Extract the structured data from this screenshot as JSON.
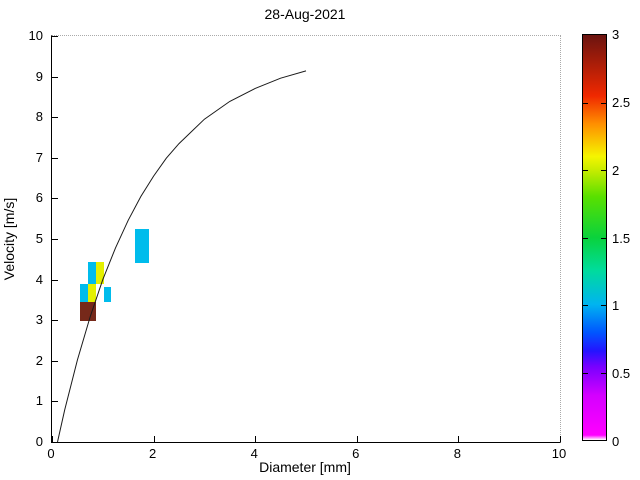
{
  "title": "28-Aug-2021",
  "chart_data": {
    "type": "heatmap",
    "title": "28-Aug-2021",
    "xlabel": "Diameter [mm]",
    "ylabel": "Velocity [m/s]",
    "xlim": [
      0,
      10
    ],
    "ylim": [
      0,
      10
    ],
    "grid": false,
    "x_ticks": [
      "0",
      "2",
      "4",
      "6",
      "8",
      "10"
    ],
    "x_tick_values": [
      0,
      2,
      4,
      6,
      8,
      10
    ],
    "y_ticks": [
      "0",
      "1",
      "2",
      "3",
      "4",
      "5",
      "6",
      "7",
      "8",
      "9",
      "10"
    ],
    "y_tick_values": [
      0,
      1,
      2,
      3,
      4,
      5,
      6,
      7,
      8,
      9,
      10
    ],
    "colorbar": {
      "min": 0,
      "max": 3,
      "tick_labels": [
        "0",
        "0.5",
        "1",
        "1.5",
        "2",
        "2.5",
        "3"
      ],
      "tick_values": [
        0,
        0.5,
        1,
        1.5,
        2,
        2.5,
        3
      ],
      "position": "right",
      "gradient_stops_bottom_to_top": [
        {
          "f": 0.0,
          "color": "#ffffff"
        },
        {
          "f": 0.012,
          "color": "#ff00ff"
        },
        {
          "f": 0.11,
          "color": "#d400ff"
        },
        {
          "f": 0.18,
          "color": "#7a00ff"
        },
        {
          "f": 0.22,
          "color": "#2414ff"
        },
        {
          "f": 0.265,
          "color": "#0055ff"
        },
        {
          "f": 0.335,
          "color": "#00b4f0"
        },
        {
          "f": 0.42,
          "color": "#00dc9b"
        },
        {
          "f": 0.5,
          "color": "#0ad23c"
        },
        {
          "f": 0.6,
          "color": "#58e000"
        },
        {
          "f": 0.667,
          "color": "#c8ec00"
        },
        {
          "f": 0.7,
          "color": "#f5f500"
        },
        {
          "f": 0.78,
          "color": "#ff9000"
        },
        {
          "f": 0.85,
          "color": "#f02800"
        },
        {
          "f": 1.0,
          "color": "#6b1410"
        }
      ]
    },
    "cells": [
      {
        "d": [
          0.71,
          0.86
        ],
        "v": [
          3.88,
          4.44
        ],
        "value": 1.1,
        "color": "#00bcec"
      },
      {
        "d": [
          0.86,
          1.02
        ],
        "v": [
          3.88,
          4.44
        ],
        "value": 2.1,
        "color": "#e4f000"
      },
      {
        "d": [
          0.56,
          0.71
        ],
        "v": [
          3.44,
          3.88
        ],
        "value": 1.1,
        "color": "#00bcec"
      },
      {
        "d": [
          0.71,
          0.86
        ],
        "v": [
          3.44,
          3.88
        ],
        "value": 2.1,
        "color": "#e4f000"
      },
      {
        "d": [
          1.02,
          1.17
        ],
        "v": [
          3.44,
          3.83
        ],
        "value": 1.1,
        "color": "#00bcec"
      },
      {
        "d": [
          0.56,
          0.86
        ],
        "v": [
          2.98,
          3.44
        ],
        "value": 3.0,
        "color": "#76291a"
      },
      {
        "d": [
          1.63,
          1.91
        ],
        "v": [
          4.42,
          5.25
        ],
        "value": 1.1,
        "color": "#00bcec"
      }
    ],
    "curve": {
      "name": "terminal-velocity-curve",
      "color": "#1a1a1a",
      "points": [
        [
          0.109,
          0.0
        ],
        [
          0.25,
          0.79
        ],
        [
          0.5,
          2.02
        ],
        [
          0.75,
          3.08
        ],
        [
          1.0,
          4.0
        ],
        [
          1.25,
          4.78
        ],
        [
          1.5,
          5.46
        ],
        [
          1.75,
          6.05
        ],
        [
          2.0,
          6.55
        ],
        [
          2.25,
          6.99
        ],
        [
          2.5,
          7.35
        ],
        [
          3.0,
          7.95
        ],
        [
          3.5,
          8.39
        ],
        [
          4.0,
          8.71
        ],
        [
          4.5,
          8.96
        ],
        [
          5.0,
          9.14
        ]
      ]
    }
  }
}
